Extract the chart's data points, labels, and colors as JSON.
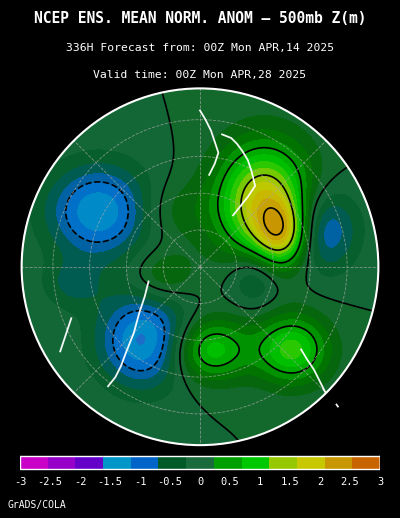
{
  "title_line1": "NCEP ENS. MEAN NORM. ANOM – 500mb Z(m)",
  "title_line2": "336H Forecast from: 00Z Mon APR,14 2025",
  "title_line3": "Valid time: 00Z Mon APR,28 2025",
  "credit": "GrADS/COLA",
  "bg_color": "#000000",
  "map_bg_color": "#1a6b3c",
  "colorbar_colors": [
    "#c800c8",
    "#9600c8",
    "#6400c8",
    "#00c8c8",
    "#0096c8",
    "#0064c8",
    "#006428",
    "#1a6b3c",
    "#00c800",
    "#96c800",
    "#c8c800",
    "#c89600",
    "#c86400"
  ],
  "colorbar_labels": [
    "-3",
    "-2.5",
    "-2",
    "-1.5",
    "-1",
    "-0.5",
    "0",
    "0.5",
    "1",
    "1.5",
    "2",
    "2.5",
    "3"
  ],
  "figsize": [
    4.0,
    5.18
  ],
  "dpi": 100
}
